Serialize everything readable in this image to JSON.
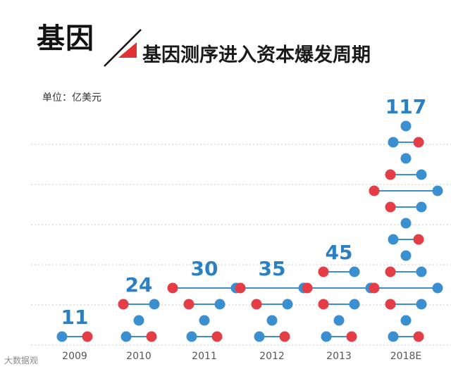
{
  "header": {
    "title": "基因",
    "subtitle": "基因测序进入资本爆发周期",
    "unit_label": "单位：亿美元"
  },
  "watermark": "大数据观",
  "colors": {
    "blue": "#3a8fd0",
    "red": "#e53c46",
    "value_text": "#2b7fc3",
    "gridline": "#c8c8c8",
    "axis_text": "#555555",
    "accent_triangle": "#e03232"
  },
  "chart_data": {
    "type": "bar",
    "title": "基因测序进入资本爆发周期",
    "ylabel": "亿美元",
    "xlabel": "",
    "categories": [
      "2009",
      "2010",
      "2011",
      "2012",
      "2013",
      "2018E"
    ],
    "values": [
      11,
      24,
      30,
      35,
      45,
      117
    ],
    "value_labels": [
      "11",
      "24",
      "30",
      "35",
      "45",
      "117"
    ],
    "style": "stacked molecule-shaped dot columns",
    "grid": true
  }
}
